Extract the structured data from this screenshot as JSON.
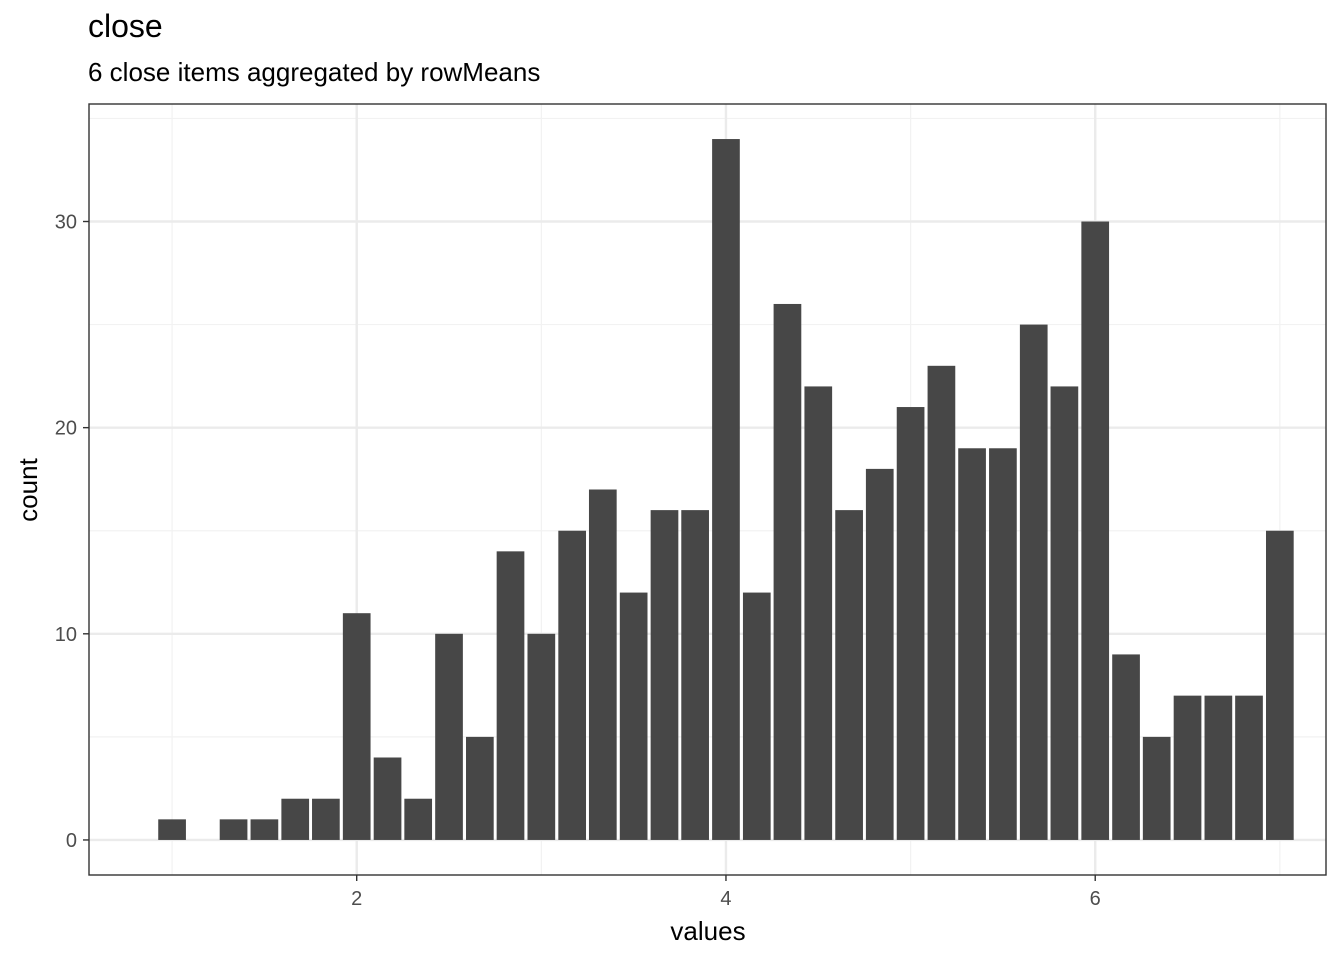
{
  "title": "close",
  "subtitle": "6 close items aggregated by rowMeans",
  "colors": {
    "bar": "#474747",
    "grid_major": "#ebebeb",
    "grid_minor": "#f2f2f2",
    "panel_border": "#333333"
  },
  "chart_data": {
    "type": "bar",
    "xlabel": "values",
    "ylabel": "count",
    "xlim": [
      0.55,
      7.25
    ],
    "ylim": [
      -1.7,
      35.7
    ],
    "xticks": [
      2,
      4,
      6
    ],
    "yticks": [
      0,
      10,
      20,
      30
    ],
    "x_minor": [
      1,
      3,
      5,
      7
    ],
    "y_minor": [
      5,
      15,
      25,
      35
    ],
    "bar_width": 0.15,
    "grid": true,
    "legend": "none",
    "x": [
      1.0,
      1.333,
      1.5,
      1.667,
      1.833,
      2.0,
      2.167,
      2.333,
      2.5,
      2.667,
      2.833,
      3.0,
      3.167,
      3.333,
      3.5,
      3.667,
      3.833,
      4.0,
      4.167,
      4.333,
      4.5,
      4.667,
      4.833,
      5.0,
      5.167,
      5.333,
      5.5,
      5.667,
      5.833,
      6.0,
      6.167,
      6.333,
      6.5,
      6.667,
      6.833,
      7.0
    ],
    "values": [
      1,
      1,
      1,
      2,
      2,
      11,
      4,
      2,
      10,
      5,
      14,
      10,
      15,
      17,
      12,
      16,
      16,
      34,
      12,
      26,
      22,
      16,
      18,
      21,
      23,
      19,
      19,
      25,
      22,
      30,
      9,
      5,
      7,
      7,
      7,
      15
    ]
  }
}
